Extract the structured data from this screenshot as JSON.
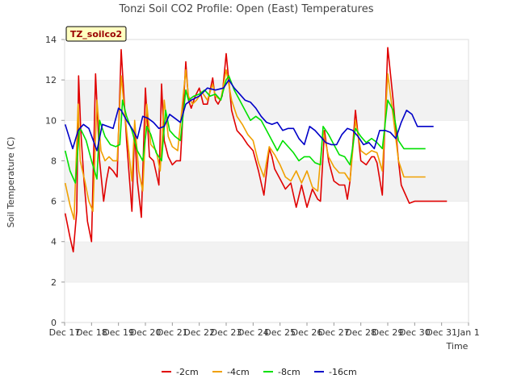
{
  "chart_data": {
    "type": "line",
    "title": "Tonzi Soil CO2 Profile: Open (East) Temperatures",
    "badge": "TZ_soilco2",
    "xlabel": "Time",
    "ylabel": "Soil Temperature (C)",
    "ylim": [
      0,
      14
    ],
    "yticks": [
      0,
      2,
      4,
      6,
      8,
      10,
      12,
      14
    ],
    "xlim": [
      0,
      15
    ],
    "xticks": [
      0,
      1,
      2,
      3,
      4,
      5,
      6,
      7,
      8,
      9,
      10,
      11,
      12,
      13,
      14,
      15
    ],
    "xtick_labels": [
      "Dec 17",
      "Dec 18",
      "Dec 19",
      "Dec 20",
      "Dec 21",
      "Dec 22",
      "Dec 23",
      "Dec 24",
      "Dec 25",
      "Dec 26",
      "Dec 27",
      "Dec 28",
      "Dec 29",
      "Dec 30",
      "Dec 31",
      "Jan 1"
    ],
    "grid": "horizontal bands",
    "legend": "bottom",
    "series": [
      {
        "name": "-2cm",
        "color": "#e00000",
        "x": [
          0.02,
          0.2,
          0.32,
          0.45,
          0.52,
          0.6,
          0.72,
          0.85,
          1.0,
          1.15,
          1.3,
          1.45,
          1.55,
          1.65,
          1.8,
          1.95,
          2.1,
          2.3,
          2.5,
          2.6,
          2.7,
          2.85,
          3.0,
          3.15,
          3.3,
          3.5,
          3.6,
          3.7,
          3.85,
          4.0,
          4.15,
          4.3,
          4.5,
          4.6,
          4.7,
          4.85,
          5.0,
          5.15,
          5.3,
          5.5,
          5.6,
          5.7,
          5.85,
          6.0,
          6.2,
          6.4,
          6.6,
          6.8,
          7.0,
          7.2,
          7.4,
          7.6,
          7.7,
          7.8,
          8.0,
          8.2,
          8.4,
          8.6,
          8.8,
          9.0,
          9.2,
          9.4,
          9.5,
          9.65,
          9.8,
          10.0,
          10.2,
          10.4,
          10.5,
          10.6,
          10.8,
          11.0,
          11.2,
          11.4,
          11.5,
          11.6,
          11.8,
          12.0,
          12.2,
          12.4,
          12.5,
          12.6,
          12.8,
          13.0,
          13.2,
          13.4,
          13.5,
          13.6,
          13.8,
          14.0,
          14.1,
          14.2
        ],
        "y": [
          5.4,
          4.2,
          3.5,
          5.5,
          12.2,
          9.5,
          7.0,
          5.0,
          4.0,
          12.3,
          8.0,
          6.0,
          7.0,
          7.7,
          7.5,
          7.2,
          13.5,
          9.0,
          5.5,
          9.5,
          7.0,
          5.2,
          11.6,
          8.2,
          8.0,
          6.8,
          11.8,
          9.0,
          8.2,
          7.8,
          8.0,
          8.0,
          12.9,
          11.0,
          10.6,
          11.2,
          11.6,
          10.8,
          10.8,
          12.1,
          11.0,
          10.8,
          11.2,
          13.3,
          10.5,
          9.5,
          9.2,
          8.8,
          8.5,
          7.5,
          6.3,
          8.6,
          8.2,
          7.6,
          7.1,
          6.6,
          6.9,
          5.7,
          6.8,
          5.7,
          6.6,
          6.1,
          6.0,
          9.5,
          8.0,
          7.0,
          6.8,
          6.8,
          6.1,
          7.0,
          10.5,
          8.0,
          7.8,
          8.2,
          8.2,
          7.9,
          6.3,
          13.6,
          11.0,
          8.0,
          6.8,
          6.5,
          5.9,
          6.0,
          6.0,
          6.0,
          6.0,
          6.0,
          6.0,
          6.0,
          6.0,
          6.0
        ]
      },
      {
        "name": "-4cm",
        "color": "#f0a000",
        "x": [
          0.02,
          0.2,
          0.35,
          0.5,
          0.58,
          0.75,
          0.9,
          1.05,
          1.2,
          1.35,
          1.5,
          1.65,
          1.8,
          1.95,
          2.1,
          2.3,
          2.5,
          2.6,
          2.75,
          2.9,
          3.05,
          3.2,
          3.4,
          3.55,
          3.7,
          3.85,
          4.0,
          4.2,
          4.5,
          4.6,
          4.75,
          4.9,
          5.1,
          5.3,
          5.5,
          5.6,
          5.8,
          6.0,
          6.2,
          6.4,
          6.6,
          6.8,
          7.0,
          7.2,
          7.4,
          7.6,
          7.8,
          8.0,
          8.2,
          8.4,
          8.6,
          8.8,
          9.0,
          9.2,
          9.4,
          9.6,
          9.8,
          10.0,
          10.2,
          10.4,
          10.6,
          10.8,
          11.0,
          11.2,
          11.4,
          11.6,
          11.8,
          12.0,
          12.2,
          12.4,
          12.6,
          12.8,
          13.0,
          13.2,
          13.4
        ],
        "y": [
          6.9,
          5.8,
          5.1,
          10.8,
          8.0,
          7.0,
          6.0,
          5.5,
          11.0,
          8.5,
          8.0,
          8.2,
          8.0,
          8.0,
          12.2,
          9.5,
          7.0,
          10.0,
          7.5,
          6.5,
          10.8,
          8.8,
          8.5,
          7.5,
          11.0,
          9.2,
          8.7,
          8.5,
          12.5,
          11.2,
          10.8,
          11.0,
          11.4,
          11.0,
          11.8,
          11.2,
          11.0,
          12.5,
          11.0,
          10.2,
          9.8,
          9.3,
          9.0,
          7.9,
          7.2,
          8.7,
          8.3,
          7.8,
          7.2,
          7.0,
          7.5,
          6.9,
          7.5,
          6.7,
          6.5,
          9.5,
          8.2,
          7.7,
          7.4,
          7.4,
          7.0,
          10.0,
          8.5,
          8.3,
          8.5,
          8.4,
          7.5,
          12.3,
          10.2,
          8.0,
          7.2,
          7.2,
          7.2,
          7.2,
          7.2
        ]
      },
      {
        "name": "-8cm",
        "color": "#00e000",
        "x": [
          0.02,
          0.2,
          0.4,
          0.55,
          0.62,
          0.8,
          1.0,
          1.2,
          1.3,
          1.5,
          1.7,
          1.9,
          2.05,
          2.15,
          2.3,
          2.5,
          2.7,
          2.9,
          3.05,
          3.2,
          3.4,
          3.6,
          3.75,
          3.9,
          4.1,
          4.3,
          4.5,
          4.6,
          4.8,
          5.0,
          5.2,
          5.4,
          5.6,
          5.8,
          6.0,
          6.1,
          6.3,
          6.5,
          6.7,
          6.9,
          7.1,
          7.3,
          7.5,
          7.7,
          7.9,
          8.1,
          8.3,
          8.5,
          8.7,
          8.9,
          9.1,
          9.3,
          9.5,
          9.6,
          9.8,
          10.0,
          10.2,
          10.4,
          10.6,
          10.8,
          11.0,
          11.2,
          11.4,
          11.6,
          11.8,
          12.0,
          12.2,
          12.4,
          12.6,
          12.8,
          13.0,
          13.2,
          13.4
        ],
        "y": [
          8.5,
          7.5,
          6.9,
          9.6,
          9.5,
          9.0,
          8.0,
          7.1,
          10.0,
          9.2,
          8.8,
          8.7,
          8.8,
          11.0,
          10.2,
          9.5,
          8.5,
          8.0,
          9.7,
          9.3,
          8.4,
          8.0,
          10.5,
          9.5,
          9.2,
          9.0,
          11.5,
          11.0,
          11.2,
          11.3,
          11.5,
          11.2,
          11.3,
          11.0,
          12.0,
          12.2,
          11.5,
          11.0,
          10.5,
          10.0,
          10.2,
          10.0,
          9.5,
          9.0,
          8.5,
          9.0,
          8.7,
          8.4,
          8.0,
          8.2,
          8.2,
          7.9,
          7.8,
          9.7,
          9.3,
          8.8,
          8.3,
          8.2,
          7.8,
          9.6,
          9.2,
          8.9,
          9.1,
          8.9,
          8.6,
          11.0,
          10.5,
          9.0,
          8.6,
          8.6,
          8.6,
          8.6,
          8.6
        ]
      },
      {
        "name": "-16cm",
        "color": "#0000c8",
        "x": [
          0.02,
          0.3,
          0.5,
          0.7,
          0.9,
          1.2,
          1.4,
          1.6,
          1.8,
          2.0,
          2.1,
          2.3,
          2.5,
          2.7,
          2.9,
          3.1,
          3.3,
          3.5,
          3.7,
          3.9,
          4.1,
          4.3,
          4.5,
          4.7,
          5.0,
          5.3,
          5.6,
          5.9,
          6.1,
          6.3,
          6.5,
          6.7,
          6.9,
          7.1,
          7.3,
          7.5,
          7.7,
          7.9,
          8.1,
          8.3,
          8.5,
          8.7,
          8.9,
          9.1,
          9.3,
          9.5,
          9.7,
          9.9,
          10.1,
          10.3,
          10.5,
          10.7,
          10.9,
          11.1,
          11.3,
          11.5,
          11.7,
          11.9,
          12.1,
          12.3,
          12.5,
          12.7,
          12.9,
          13.1,
          13.3,
          13.5,
          13.7
        ],
        "y": [
          9.8,
          8.6,
          9.5,
          9.8,
          9.6,
          8.5,
          9.8,
          9.7,
          9.6,
          10.6,
          10.5,
          10.0,
          9.6,
          9.1,
          10.2,
          10.1,
          9.9,
          9.6,
          9.7,
          10.3,
          10.1,
          9.9,
          10.8,
          11.0,
          11.2,
          11.6,
          11.5,
          11.6,
          12.0,
          11.6,
          11.3,
          11.0,
          10.9,
          10.6,
          10.2,
          9.9,
          9.8,
          9.9,
          9.5,
          9.6,
          9.6,
          9.1,
          8.8,
          9.7,
          9.5,
          9.2,
          8.9,
          8.8,
          8.8,
          9.3,
          9.6,
          9.5,
          9.2,
          8.8,
          8.9,
          8.6,
          9.5,
          9.5,
          9.4,
          9.1,
          9.9,
          10.5,
          10.3,
          9.7,
          9.7,
          9.7,
          9.7
        ]
      }
    ]
  }
}
